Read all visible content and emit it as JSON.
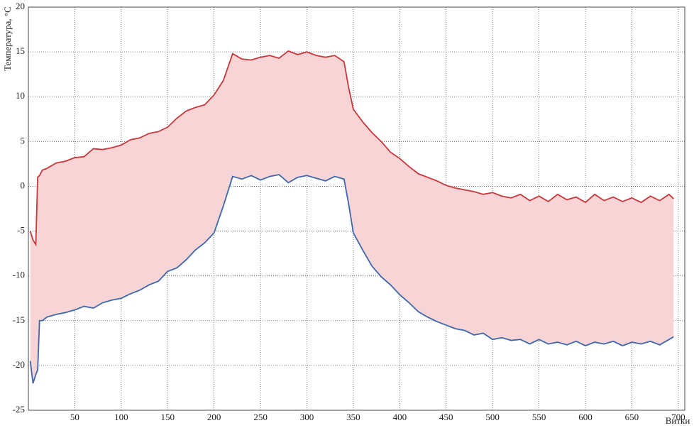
{
  "chart_data": {
    "type": "line",
    "y_label": "Температура, °С",
    "x_label": "Витки",
    "x": [
      2,
      5,
      8,
      10,
      12,
      15,
      20,
      30,
      40,
      50,
      60,
      70,
      80,
      90,
      100,
      110,
      120,
      130,
      140,
      150,
      160,
      170,
      180,
      190,
      200,
      210,
      220,
      230,
      240,
      250,
      260,
      270,
      280,
      290,
      300,
      310,
      320,
      330,
      340,
      345,
      350,
      360,
      370,
      380,
      390,
      400,
      410,
      420,
      430,
      440,
      450,
      460,
      470,
      480,
      490,
      500,
      510,
      520,
      530,
      540,
      550,
      560,
      570,
      580,
      590,
      600,
      610,
      620,
      630,
      640,
      650,
      660,
      670,
      680,
      690,
      695
    ],
    "series": [
      {
        "color": "#c8373a",
        "values": [
          -5,
          -6,
          -6.5,
          1,
          1.2,
          1.8,
          2,
          2.6,
          2.8,
          3.2,
          3.3,
          4.2,
          4.1,
          4.3,
          4.6,
          5.2,
          5.4,
          5.9,
          6.1,
          6.6,
          7.6,
          8.4,
          8.8,
          9.1,
          10.2,
          11.8,
          14.8,
          14.2,
          14.1,
          14.4,
          14.6,
          14.3,
          15.1,
          14.7,
          15,
          14.6,
          14.4,
          14.6,
          13.9,
          11,
          8.6,
          7.2,
          6,
          5,
          3.8,
          3.1,
          2.2,
          1.4,
          1,
          0.6,
          0.1,
          -0.2,
          -0.4,
          -0.6,
          -0.9,
          -0.7,
          -1.1,
          -1.3,
          -0.9,
          -1.6,
          -1.1,
          -1.7,
          -0.9,
          -1.5,
          -1.2,
          -1.8,
          -0.9,
          -1.6,
          -1.2,
          -1.7,
          -1.3,
          -1.8,
          -1.1,
          -1.6,
          -0.9,
          -1.4
        ]
      },
      {
        "color": "#3d66ad",
        "values": [
          -19.5,
          -22,
          -21,
          -20.5,
          -15,
          -15,
          -14.6,
          -14.3,
          -14.1,
          -13.8,
          -13.4,
          -13.6,
          -13,
          -12.7,
          -12.5,
          -12,
          -11.6,
          -11,
          -10.6,
          -9.5,
          -9.1,
          -8.2,
          -7.1,
          -6.3,
          -5.2,
          -2.2,
          1.1,
          0.8,
          1.2,
          0.7,
          1.1,
          1.3,
          0.4,
          1,
          1.2,
          0.9,
          0.6,
          1.1,
          0.8,
          -2,
          -5.2,
          -7.1,
          -8.9,
          -10.1,
          -11,
          -12.1,
          -13,
          -14,
          -14.6,
          -15.1,
          -15.5,
          -15.9,
          -16.1,
          -16.6,
          -16.4,
          -17.1,
          -16.9,
          -17.2,
          -17.1,
          -17.6,
          -17.1,
          -17.6,
          -17.4,
          -17.7,
          -17.3,
          -17.8,
          -17.4,
          -17.6,
          -17.3,
          -17.8,
          -17.4,
          -17.6,
          -17.3,
          -17.7,
          -17.1,
          -16.8
        ]
      }
    ],
    "fill_between_color": "#f7d5d6",
    "xlim": [
      0,
      707
    ],
    "xticks": [
      50,
      100,
      150,
      200,
      250,
      300,
      350,
      400,
      450,
      500,
      550,
      600,
      650,
      700
    ],
    "ylim": [
      -25,
      20
    ],
    "yticks": [
      -25,
      -20,
      -15,
      -10,
      -5,
      0,
      5,
      10,
      15,
      20
    ],
    "grid": true
  }
}
